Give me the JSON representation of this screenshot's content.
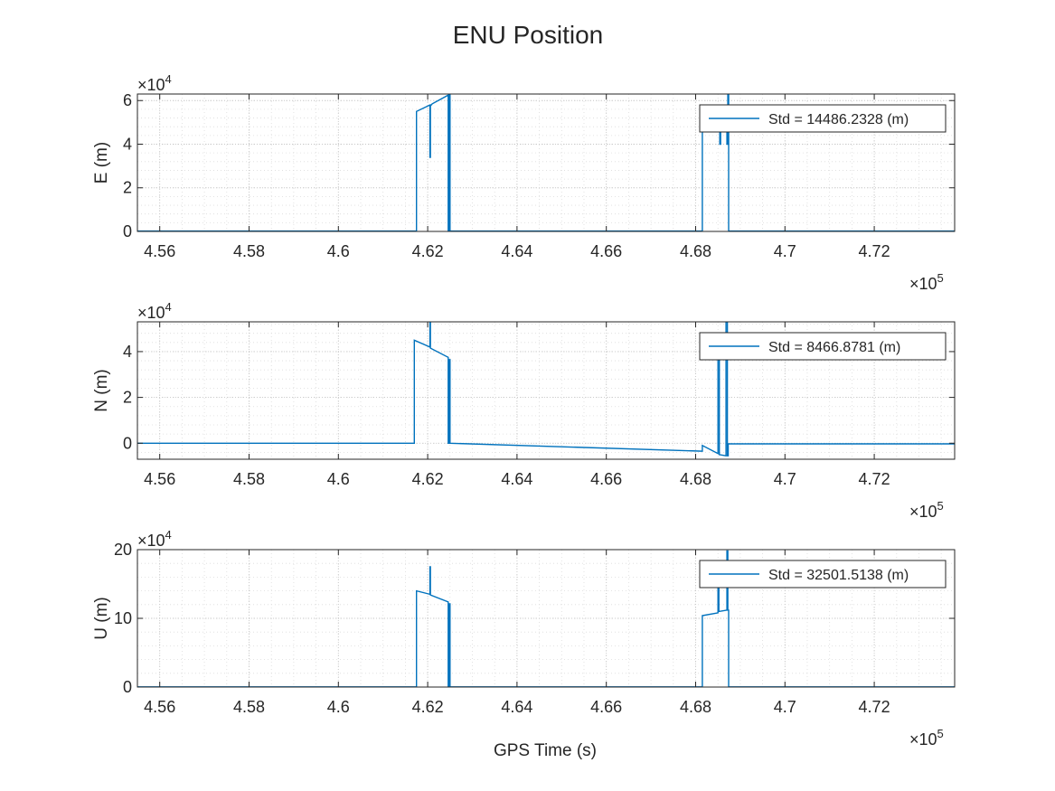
{
  "figure": {
    "title": "ENU Position",
    "xlabel": "GPS Time (s)",
    "x_exponent_label": "×10",
    "x_exponent_power": "5",
    "y_exponent_label": "×10",
    "y_exponent_power": "4",
    "colors": {
      "series": "#0072BD",
      "axis": "#262626",
      "grid": "#DCDCDC",
      "background": "#FFFFFF"
    }
  },
  "chart_data": [
    {
      "type": "line",
      "ylabel": "E (m)",
      "legend": {
        "label": "Std = 14486.2328 (m)",
        "placement": "top-right"
      },
      "xlim": [
        455500,
        473800
      ],
      "ylim": [
        0,
        63000
      ],
      "grid": true,
      "minor_grid": true,
      "xticks": [
        456000,
        458000,
        460000,
        462000,
        464000,
        466000,
        468000,
        470000,
        472000
      ],
      "xticklabels": [
        "4.56",
        "4.58",
        "4.6",
        "4.62",
        "4.64",
        "4.66",
        "4.68",
        "4.7",
        "4.72"
      ],
      "yticks": [
        0,
        20000,
        40000,
        60000
      ],
      "yticklabels": [
        "0",
        "2",
        "4",
        "6"
      ],
      "series": [
        {
          "color": "#0072BD",
          "x": [
            455500,
            461750,
            461750,
            462050,
            462050,
            462060,
            462060,
            462100,
            462460,
            462460,
            462480,
            462480,
            462500,
            462500,
            468150,
            468150,
            468540,
            468540,
            468560,
            468560,
            468700,
            468700,
            468720,
            468720,
            468740,
            468740,
            473800
          ],
          "y": [
            150,
            150,
            55000,
            58000,
            34000,
            34000,
            57500,
            58500,
            62500,
            0,
            0,
            63000,
            63000,
            150,
            150,
            50000,
            50000,
            40000,
            40000,
            50000,
            50000,
            40000,
            40000,
            63000,
            63000,
            150,
            150
          ]
        }
      ]
    },
    {
      "type": "line",
      "ylabel": "N (m)",
      "legend": {
        "label": "Std = 8466.8781 (m)",
        "placement": "top-right"
      },
      "xlim": [
        455500,
        473800
      ],
      "ylim": [
        -7000,
        53000
      ],
      "grid": true,
      "minor_grid": true,
      "xticks": [
        456000,
        458000,
        460000,
        462000,
        464000,
        466000,
        468000,
        470000,
        472000
      ],
      "xticklabels": [
        "4.56",
        "4.58",
        "4.6",
        "4.62",
        "4.64",
        "4.66",
        "4.68",
        "4.7",
        "4.72"
      ],
      "yticks": [
        0,
        20000,
        40000
      ],
      "yticklabels": [
        "0",
        "2",
        "4"
      ],
      "series": [
        {
          "color": "#0072BD",
          "x": [
            455500,
            461700,
            461700,
            462050,
            462050,
            462060,
            462060,
            462460,
            462460,
            462480,
            462480,
            462500,
            462500,
            468150,
            468150,
            468500,
            468500,
            468530,
            468530,
            468680,
            468680,
            468710,
            468710,
            468730,
            468730,
            473800
          ],
          "y": [
            0,
            0,
            45000,
            42000,
            53000,
            53000,
            41500,
            37500,
            0,
            0,
            36500,
            36500,
            0,
            -3500,
            -1000,
            -4500,
            45000,
            45000,
            -5000,
            -5500,
            53000,
            53000,
            -5500,
            -5500,
            -300,
            -300
          ]
        }
      ]
    },
    {
      "type": "line",
      "ylabel": "U (m)",
      "legend": {
        "label": "Std = 32501.5138 (m)",
        "placement": "top-right"
      },
      "xlim": [
        455500,
        473800
      ],
      "ylim": [
        0,
        200000
      ],
      "grid": true,
      "minor_grid": true,
      "xticks": [
        456000,
        458000,
        460000,
        462000,
        464000,
        466000,
        468000,
        470000,
        472000
      ],
      "xticklabels": [
        "4.56",
        "4.58",
        "4.6",
        "4.62",
        "4.64",
        "4.66",
        "4.68",
        "4.7",
        "4.72"
      ],
      "yticks": [
        0,
        100000,
        200000
      ],
      "yticklabels": [
        "0",
        "10",
        "20"
      ],
      "series": [
        {
          "color": "#0072BD",
          "x": [
            455500,
            461750,
            461750,
            462050,
            462050,
            462060,
            462060,
            462460,
            462460,
            462480,
            462480,
            462500,
            462500,
            468150,
            468150,
            468500,
            468500,
            468520,
            468520,
            468700,
            468700,
            468720,
            468720,
            468740,
            468740,
            473800
          ],
          "y": [
            300,
            300,
            140000,
            135000,
            175000,
            175000,
            134000,
            124000,
            0,
            0,
            121000,
            121000,
            300,
            300,
            104000,
            108000,
            150000,
            150000,
            110000,
            112000,
            198000,
            198000,
            112000,
            112000,
            300,
            300
          ]
        }
      ]
    }
  ]
}
